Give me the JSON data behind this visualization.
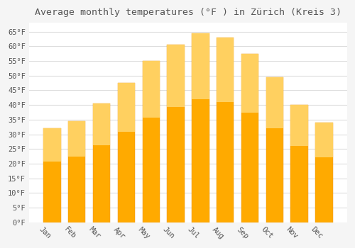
{
  "title": "Average monthly temperatures (°F ) in Zürich (Kreis 3)",
  "months": [
    "Jan",
    "Feb",
    "Mar",
    "Apr",
    "May",
    "Jun",
    "Jul",
    "Aug",
    "Sep",
    "Oct",
    "Nov",
    "Dec"
  ],
  "values": [
    32,
    34.5,
    40.5,
    47.5,
    55,
    60.5,
    64.5,
    63,
    57.5,
    49.5,
    40,
    34
  ],
  "bar_color": "#FFAA00",
  "bar_color_top": "#FFD060",
  "bar_edge_color": "#E89000",
  "background_color": "#F5F5F5",
  "plot_bg_color": "#FFFFFF",
  "grid_color": "#DDDDDD",
  "text_color": "#555555",
  "ylim": [
    0,
    68
  ],
  "yticks": [
    0,
    5,
    10,
    15,
    20,
    25,
    30,
    35,
    40,
    45,
    50,
    55,
    60,
    65
  ],
  "ylabel_suffix": "°F",
  "title_fontsize": 9.5,
  "tick_fontsize": 7.5,
  "xlabel_rotation": -45
}
